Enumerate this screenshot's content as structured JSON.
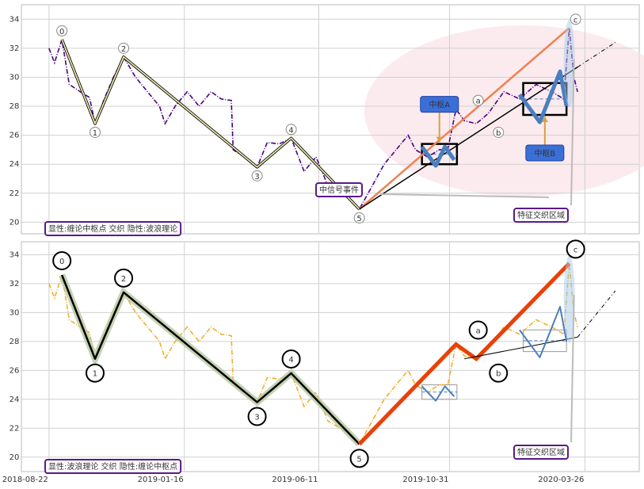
{
  "chart_data": [
    {
      "type": "line",
      "xlim": [
        "2018-07-23",
        "2020-05-24"
      ],
      "ylim": [
        19.2,
        35.0
      ],
      "yticks": [
        20,
        22,
        24,
        26,
        28,
        30,
        32,
        34
      ],
      "xticks": [
        "2018-08-22",
        "2019-01-16",
        "2019-06-11",
        "2019-10-31",
        "2020-03-26"
      ],
      "grid": true,
      "x": [
        "2018-08-22",
        "2018-08-28",
        "2018-09-05",
        "2018-09-13",
        "2018-09-25",
        "2018-10-05",
        "2018-10-11",
        "2018-10-21",
        "2018-10-31",
        "2018-11-11",
        "2018-11-24",
        "2018-12-07",
        "2018-12-20",
        "2018-12-26",
        "2019-01-06",
        "2019-01-19",
        "2019-02-01",
        "2019-02-14",
        "2019-02-25",
        "2019-03-08",
        "2019-03-10",
        "2019-03-22",
        "2019-04-05",
        "2019-04-16",
        "2019-04-29",
        "2019-05-12",
        "2019-05-26",
        "2019-06-08",
        "2019-06-21",
        "2019-07-04",
        "2019-07-17",
        "2019-07-25",
        "2019-08-08",
        "2019-08-21",
        "2019-09-03",
        "2019-09-16",
        "2019-09-24",
        "2019-10-07",
        "2019-10-20",
        "2019-10-29",
        "2019-11-07",
        "2019-11-16",
        "2019-11-29",
        "2019-12-12",
        "2019-12-29",
        "2020-01-15",
        "2020-02-02",
        "2020-02-19",
        "2020-03-03",
        "2020-03-09",
        "2020-03-14",
        "2020-03-18"
      ],
      "series": [
        {
          "color": "#4b0082",
          "values": [
            32.0,
            31.0,
            32.6,
            29.5,
            29.0,
            28.6,
            26.8,
            28.5,
            30.0,
            31.4,
            30.0,
            29.0,
            28.0,
            26.8,
            28.0,
            29.0,
            28.0,
            29.0,
            28.5,
            28.4,
            25.0,
            24.5,
            23.8,
            25.5,
            25.4,
            25.8,
            23.5,
            24.5,
            22.5,
            22.0,
            21.5,
            20.9,
            22.5,
            24.0,
            25.0,
            26.0,
            25.0,
            24.5,
            25.0,
            25.0,
            27.8,
            27.0,
            26.8,
            27.5,
            29.0,
            28.5,
            29.5,
            29.0,
            28.5,
            33.4,
            30.0,
            29.0
          ]
        }
      ],
      "waves": {
        "labels": [
          "0",
          "1",
          "2",
          "3",
          "4",
          "5",
          "a",
          "b",
          "c"
        ],
        "x": [
          "2018-09-05",
          "2018-10-11",
          "2018-11-11",
          "2019-04-05",
          "2019-05-12",
          "2019-07-25",
          "2019-11-07",
          "2019-11-29",
          "2020-03-09"
        ],
        "values": [
          32.6,
          26.8,
          31.4,
          23.8,
          25.8,
          20.9,
          27.8,
          26.8,
          33.4
        ],
        "color": "#e8e4a8",
        "abc_color": null
      },
      "trends": [
        {
          "color": "#f08050",
          "width": 2.5,
          "x": [
            "2019-07-25",
            "2020-03-09"
          ],
          "values": [
            20.9,
            33.4
          ]
        },
        {
          "color": "#000000",
          "width": 1.5,
          "x": [
            "2019-07-25",
            "2020-03-18"
          ],
          "values": [
            20.9,
            30.7
          ]
        },
        {
          "color": "#000000",
          "width": 1,
          "dash": true,
          "x": [
            "2020-03-18",
            "2020-04-28"
          ],
          "values": [
            30.7,
            32.4
          ]
        },
        {
          "color": "#4a7fc0",
          "width": 5,
          "x": [
            "2019-10-01",
            "2019-10-16",
            "2019-10-26",
            "2019-11-05"
          ],
          "values": [
            25.2,
            23.9,
            25.2,
            24.3
          ]
        },
        {
          "color": "#4a7fc0",
          "width": 5,
          "x": [
            "2020-01-15",
            "2020-02-06",
            "2020-02-28",
            "2020-03-06"
          ],
          "values": [
            28.8,
            26.9,
            30.4,
            28.0
          ]
        }
      ],
      "zones": [
        {
          "label": "中枢A",
          "x": [
            "2019-10-01",
            "2019-11-08"
          ],
          "y": [
            24.0,
            25.4
          ],
          "color": "#000000"
        },
        {
          "label": "中枢B",
          "x": [
            "2020-01-19",
            "2020-03-06"
          ],
          "y": [
            27.4,
            29.6
          ],
          "color": "#000000"
        }
      ],
      "notes": [
        "中信号事件",
        "特征交织区域"
      ],
      "caption": "显性:缠论中枢点 交织 隐性:波浪理论"
    },
    {
      "type": "line",
      "xlim": [
        "2018-07-23",
        "2020-05-24"
      ],
      "ylim": [
        19.0,
        34.9
      ],
      "yticks": [
        20,
        22,
        24,
        26,
        28,
        30,
        32,
        34
      ],
      "xticks": [
        "2018-08-22",
        "2019-01-16",
        "2019-06-11",
        "2019-10-31",
        "2020-03-26"
      ],
      "grid": true,
      "x": [
        "2018-08-22",
        "2018-08-28",
        "2018-09-05",
        "2018-09-13",
        "2018-09-25",
        "2018-10-05",
        "2018-10-11",
        "2018-10-21",
        "2018-10-31",
        "2018-11-11",
        "2018-11-24",
        "2018-12-07",
        "2018-12-20",
        "2018-12-26",
        "2019-01-06",
        "2019-01-19",
        "2019-02-01",
        "2019-02-14",
        "2019-02-25",
        "2019-03-08",
        "2019-03-10",
        "2019-03-22",
        "2019-04-05",
        "2019-04-16",
        "2019-04-29",
        "2019-05-12",
        "2019-05-26",
        "2019-06-08",
        "2019-06-21",
        "2019-07-04",
        "2019-07-17",
        "2019-07-25",
        "2019-08-08",
        "2019-08-21",
        "2019-09-03",
        "2019-09-16",
        "2019-09-24",
        "2019-10-07",
        "2019-10-20",
        "2019-10-29",
        "2019-11-07",
        "2019-11-16",
        "2019-11-29",
        "2019-12-12",
        "2019-12-29",
        "2020-01-15",
        "2020-02-02",
        "2020-02-19",
        "2020-03-03",
        "2020-03-09",
        "2020-03-14",
        "2020-03-18"
      ],
      "series": [
        {
          "color": "#f0b030",
          "values": [
            32.0,
            31.0,
            32.6,
            29.5,
            29.0,
            28.6,
            26.8,
            28.5,
            30.0,
            31.4,
            30.0,
            29.0,
            28.0,
            26.8,
            28.0,
            29.0,
            28.0,
            29.0,
            28.5,
            28.4,
            25.0,
            24.5,
            23.8,
            25.5,
            25.4,
            25.8,
            23.5,
            24.5,
            22.5,
            22.0,
            21.5,
            20.9,
            22.5,
            24.0,
            25.0,
            26.0,
            25.0,
            24.5,
            25.0,
            25.0,
            27.8,
            27.0,
            26.8,
            27.5,
            29.0,
            28.5,
            29.5,
            29.0,
            28.5,
            33.4,
            30.0,
            29.0
          ]
        }
      ],
      "waves": {
        "labels": [
          "0",
          "1",
          "2",
          "3",
          "4",
          "5",
          "a",
          "b",
          "c"
        ],
        "x": [
          "2018-09-05",
          "2018-10-11",
          "2018-11-11",
          "2019-04-05",
          "2019-05-12",
          "2019-07-25",
          "2019-11-07",
          "2019-11-29",
          "2020-03-09"
        ],
        "values": [
          32.6,
          26.8,
          31.4,
          23.8,
          25.8,
          20.9,
          27.8,
          26.8,
          33.4
        ],
        "color": "#000000",
        "abc_color": "#e8410a"
      },
      "trends": [
        {
          "color": "#000000",
          "width": 1,
          "x": [
            "2019-11-16",
            "2020-03-18"
          ],
          "values": [
            26.8,
            28.3
          ]
        },
        {
          "color": "#000000",
          "width": 1,
          "dash": true,
          "x": [
            "2020-03-18",
            "2020-04-28"
          ],
          "values": [
            28.3,
            31.5
          ]
        },
        {
          "color": "#4a7fc0",
          "width": 2,
          "x": [
            "2019-10-01",
            "2019-10-16",
            "2019-10-26",
            "2019-11-05"
          ],
          "values": [
            24.9,
            23.9,
            24.9,
            24.2
          ]
        },
        {
          "color": "#4a7fc0",
          "width": 2,
          "x": [
            "2020-01-15",
            "2020-02-06",
            "2020-02-28",
            "2020-03-06"
          ],
          "values": [
            28.8,
            26.9,
            30.4,
            28.0
          ]
        }
      ],
      "zones": [
        {
          "x": [
            "2019-10-01",
            "2019-11-08"
          ],
          "y": [
            24.0,
            25.0
          ],
          "color": "#999999"
        },
        {
          "x": [
            "2020-01-19",
            "2020-03-06"
          ],
          "y": [
            27.3,
            28.8
          ],
          "color": "#999999"
        }
      ],
      "notes": [
        "特征交织区域"
      ],
      "caption": "显性:波浪理论 交织 隐性:缠论中枢点"
    }
  ]
}
